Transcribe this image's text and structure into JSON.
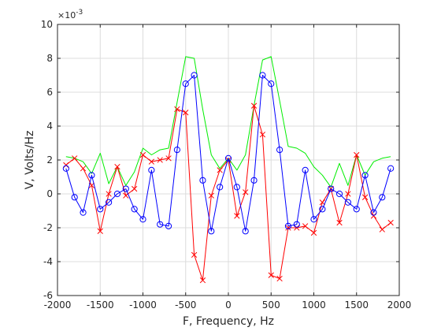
{
  "chart_data": {
    "type": "line",
    "title": "",
    "xlabel": "F, Frequency, Hz",
    "ylabel": "V, Volts/Hz",
    "exponent_base": "×10",
    "exponent_power": "-3",
    "xlim": [
      -2000,
      2000
    ],
    "ylim": [
      -6,
      10
    ],
    "xticks": [
      -2000,
      -1500,
      -1000,
      -500,
      0,
      500,
      1000,
      1500,
      2000
    ],
    "yticks": [
      -6,
      -4,
      -2,
      0,
      2,
      4,
      6,
      8,
      10
    ],
    "grid": true,
    "series": [
      {
        "color": "#00ee00",
        "marker": "none",
        "x": [
          -1900,
          -1800,
          -1700,
          -1600,
          -1500,
          -1400,
          -1300,
          -1200,
          -1100,
          -1000,
          -900,
          -800,
          -700,
          -600,
          -500,
          -400,
          -300,
          -200,
          -100,
          0,
          100,
          200,
          300,
          400,
          500,
          600,
          700,
          800,
          900,
          1000,
          1100,
          1200,
          1300,
          1400,
          1500,
          1600,
          1700,
          1800,
          1900
        ],
        "y": [
          2.2,
          2.1,
          1.9,
          1.2,
          2.4,
          0.6,
          1.6,
          0.5,
          1.3,
          2.7,
          2.3,
          2.6,
          2.7,
          5.4,
          8.1,
          8.0,
          5.0,
          2.3,
          1.5,
          2.1,
          1.4,
          2.3,
          5.2,
          7.9,
          8.1,
          5.5,
          2.8,
          2.7,
          2.4,
          1.6,
          1.1,
          0.4,
          1.8,
          0.5,
          2.3,
          1.1,
          1.9,
          2.1,
          2.2
        ]
      },
      {
        "color": "#ff0000",
        "marker": "x",
        "x": [
          -1900,
          -1800,
          -1700,
          -1600,
          -1500,
          -1400,
          -1300,
          -1200,
          -1100,
          -1000,
          -900,
          -800,
          -700,
          -600,
          -500,
          -400,
          -300,
          -200,
          -100,
          0,
          100,
          200,
          300,
          400,
          500,
          600,
          700,
          800,
          900,
          1000,
          1100,
          1200,
          1300,
          1400,
          1500,
          1600,
          1700,
          1800,
          1900
        ],
        "y": [
          1.7,
          2.1,
          1.5,
          0.5,
          -2.2,
          0.0,
          1.6,
          -0.1,
          0.3,
          2.3,
          1.9,
          2.0,
          2.1,
          5.0,
          4.8,
          -3.6,
          -5.1,
          -0.1,
          1.4,
          2.0,
          -1.3,
          0.1,
          5.2,
          3.5,
          -4.8,
          -5.0,
          -2.0,
          -2.0,
          -1.9,
          -2.3,
          -0.5,
          0.3,
          -1.7,
          0.0,
          2.3,
          -0.2,
          -1.3,
          -2.1,
          -1.7
        ]
      },
      {
        "color": "#0000ff",
        "marker": "o",
        "x": [
          -1900,
          -1800,
          -1700,
          -1600,
          -1500,
          -1400,
          -1300,
          -1200,
          -1100,
          -1000,
          -900,
          -800,
          -700,
          -600,
          -500,
          -400,
          -300,
          -200,
          -100,
          0,
          100,
          200,
          300,
          400,
          500,
          600,
          700,
          800,
          900,
          1000,
          1100,
          1200,
          1300,
          1400,
          1500,
          1600,
          1700,
          1800,
          1900
        ],
        "y": [
          1.5,
          -0.2,
          -1.1,
          1.1,
          -0.9,
          -0.5,
          0.0,
          0.3,
          -0.9,
          -1.5,
          1.4,
          -1.8,
          -1.9,
          2.6,
          6.5,
          7.0,
          0.8,
          -2.2,
          0.4,
          2.1,
          0.4,
          -2.2,
          0.8,
          7.0,
          6.5,
          2.6,
          -1.9,
          -1.8,
          1.4,
          -1.5,
          -0.9,
          0.3,
          0.0,
          -0.5,
          -0.9,
          1.1,
          -1.1,
          -0.2,
          1.5
        ]
      }
    ]
  }
}
